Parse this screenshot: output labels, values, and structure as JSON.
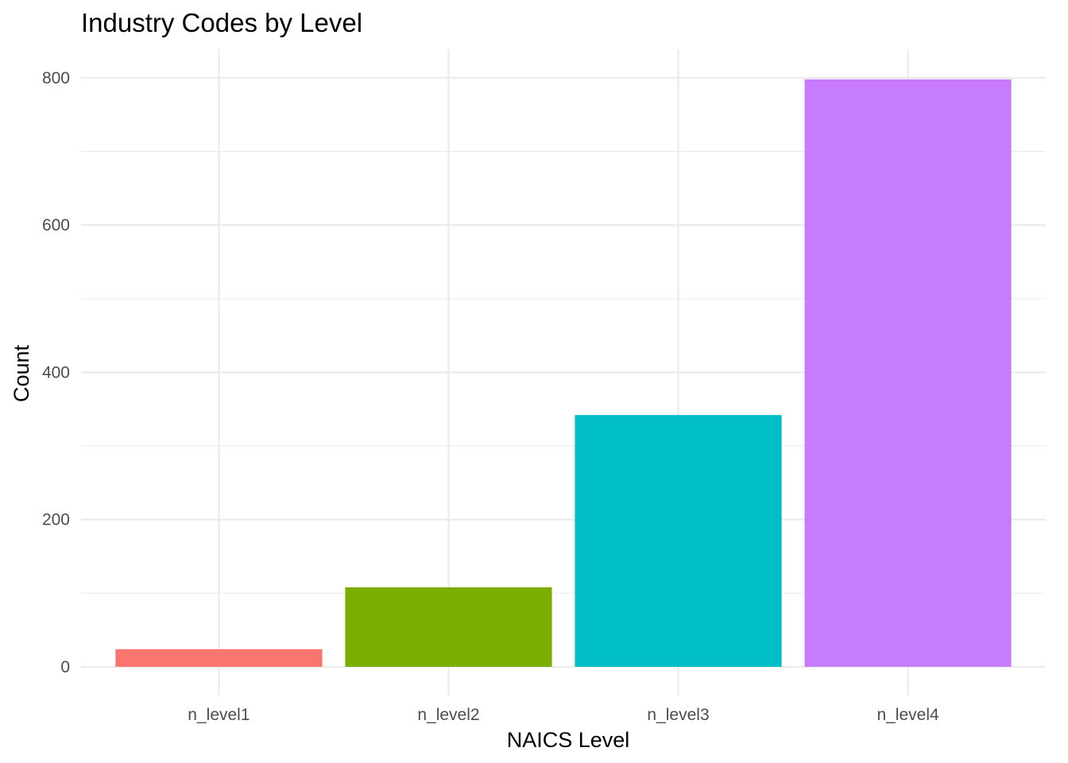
{
  "chart_data": {
    "type": "bar",
    "title": "Industry Codes by Level",
    "xlabel": "NAICS Level",
    "ylabel": "Count",
    "categories": [
      "n_level1",
      "n_level2",
      "n_level3",
      "n_level4"
    ],
    "values": [
      24,
      108,
      342,
      798
    ],
    "colors": [
      "#F8766D",
      "#7CAE00",
      "#00BFC4",
      "#C77CFF"
    ],
    "yticks": [
      0,
      200,
      400,
      600,
      800
    ],
    "ylim": [
      -40,
      838
    ],
    "grid": true,
    "legend": "none"
  }
}
